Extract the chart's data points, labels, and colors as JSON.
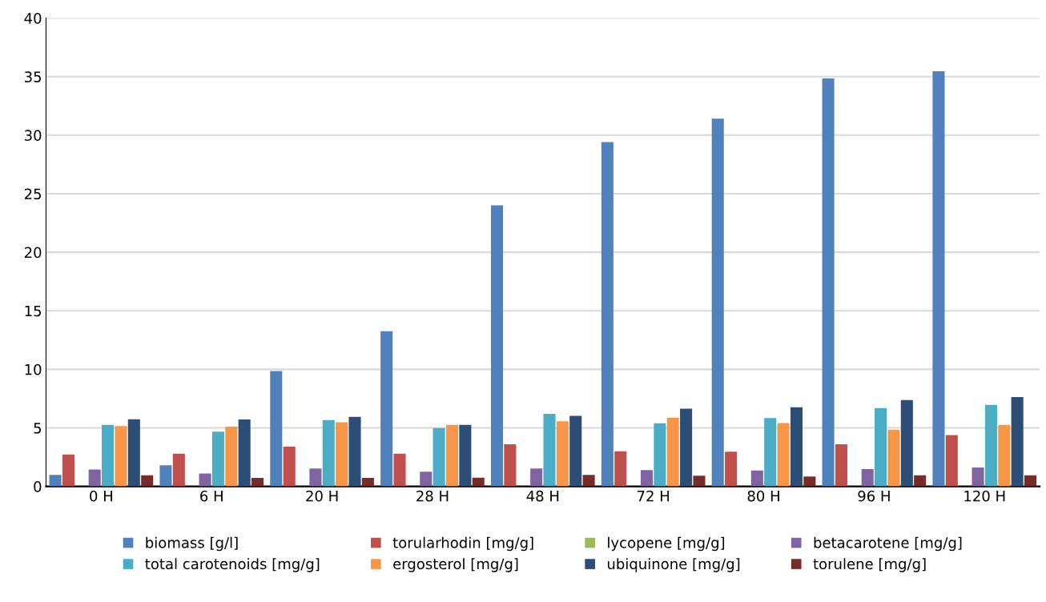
{
  "chart_data": {
    "type": "bar",
    "categories": [
      "0 H",
      "6 H",
      "20 H",
      "28 H",
      "48 H",
      "72 H",
      "80 H",
      "96 H",
      "120 H"
    ],
    "series": [
      {
        "name": "biomass [g/l]",
        "color": "#4f81bd",
        "values": [
          0.98,
          1.8,
          9.85,
          13.25,
          24.0,
          29.4,
          31.4,
          34.85,
          35.45
        ]
      },
      {
        "name": "torularhodin [mg/g]",
        "color": "#c0504d",
        "values": [
          2.72,
          2.79,
          3.4,
          2.79,
          3.6,
          3.0,
          2.97,
          3.6,
          4.38
        ]
      },
      {
        "name": "lycopene [mg/g]",
        "color": "#9bbb59",
        "values": [
          0,
          0,
          0,
          0,
          0,
          0,
          0,
          0,
          0
        ]
      },
      {
        "name": "betacarotene [mg/g]",
        "color": "#8064a2",
        "values": [
          1.44,
          1.1,
          1.53,
          1.26,
          1.53,
          1.39,
          1.35,
          1.48,
          1.62
        ]
      },
      {
        "name": "total carotenoids [mg/g]",
        "color": "#4bacc6",
        "values": [
          5.25,
          4.68,
          5.66,
          4.98,
          6.19,
          5.39,
          5.84,
          6.69,
          6.96
        ]
      },
      {
        "name": "ergosterol [mg/g]",
        "color": "#f79646",
        "values": [
          5.16,
          5.11,
          5.48,
          5.25,
          5.57,
          5.87,
          5.41,
          4.84,
          5.25
        ]
      },
      {
        "name": "ubiquinone [mg/g]",
        "color": "#2c4d75",
        "values": [
          5.73,
          5.71,
          5.94,
          5.25,
          6.03,
          6.64,
          6.76,
          7.38,
          7.63
        ]
      },
      {
        "name": "torulene [mg/g]",
        "color": "#772c2a",
        "values": [
          0.94,
          0.73,
          0.72,
          0.75,
          0.98,
          0.91,
          0.84,
          0.94,
          0.94
        ]
      }
    ],
    "ylim": [
      0,
      40
    ],
    "yticks": [
      0,
      5,
      10,
      15,
      20,
      25,
      30,
      35,
      40
    ],
    "grid": "y",
    "legend": "bottom"
  }
}
